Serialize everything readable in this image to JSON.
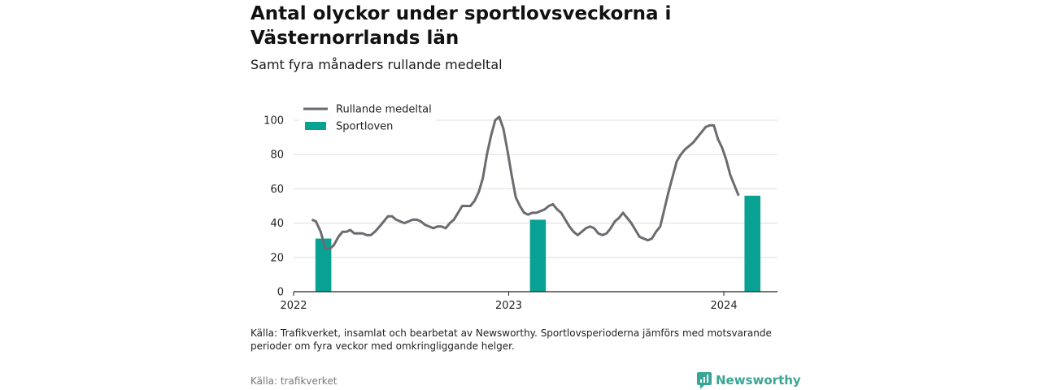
{
  "header": {
    "title": "Antal olyckor under sportlovsveckorna i Västernorrlands län",
    "subtitle": "Samt fyra månaders rullande medeltal"
  },
  "footer": {
    "note": "Källa: Trafikverket, insamlat och bearbetat av Newsworthy. Sportlovsperioderna jämförs med motsvarande perioder om fyra veckor med omkringliggande helger.",
    "source": "Källa: trafikverket",
    "brand": "Newsworthy"
  },
  "colors": {
    "line": "#6b6b70",
    "bar": "#0aa195",
    "grid": "#dddddd",
    "brand": "#3aa596"
  },
  "chart_data": {
    "type": "bar+line",
    "xlim": [
      "2022-01-01",
      "2024-04-01"
    ],
    "ylim": [
      0,
      100
    ],
    "yticks": [
      0,
      20,
      40,
      60,
      80,
      100
    ],
    "xticks": [
      {
        "date": "2022-01-01",
        "label": "2022"
      },
      {
        "date": "2023-01-01",
        "label": "2023"
      },
      {
        "date": "2024-01-01",
        "label": "2024"
      }
    ],
    "legend": {
      "placement": "top-left",
      "items": [
        {
          "label": "Rullande medeltal",
          "kind": "line"
        },
        {
          "label": "Sportloven",
          "kind": "bar"
        }
      ]
    },
    "bars": {
      "name": "Sportloven",
      "points": [
        {
          "start": "2022-02-07",
          "end": "2022-03-06",
          "value": 31
        },
        {
          "start": "2023-02-06",
          "end": "2023-03-05",
          "value": 42
        },
        {
          "start": "2024-02-05",
          "end": "2024-03-03",
          "value": 56
        }
      ]
    },
    "series": [
      {
        "name": "Rullande medeltal",
        "points": [
          [
            "2022-02-01",
            42
          ],
          [
            "2022-02-08",
            41
          ],
          [
            "2022-02-16",
            35
          ],
          [
            "2022-02-24",
            25
          ],
          [
            "2022-03-03",
            25
          ],
          [
            "2022-03-10",
            27
          ],
          [
            "2022-03-18",
            32
          ],
          [
            "2022-03-25",
            35
          ],
          [
            "2022-04-01",
            35
          ],
          [
            "2022-04-07",
            36
          ],
          [
            "2022-04-14",
            34
          ],
          [
            "2022-04-21",
            34
          ],
          [
            "2022-04-28",
            34
          ],
          [
            "2022-05-05",
            33
          ],
          [
            "2022-05-12",
            33
          ],
          [
            "2022-05-19",
            35
          ],
          [
            "2022-05-27",
            38
          ],
          [
            "2022-06-03",
            41
          ],
          [
            "2022-06-10",
            44
          ],
          [
            "2022-06-17",
            44
          ],
          [
            "2022-06-24",
            42
          ],
          [
            "2022-07-01",
            41
          ],
          [
            "2022-07-08",
            40
          ],
          [
            "2022-07-15",
            41
          ],
          [
            "2022-07-22",
            42
          ],
          [
            "2022-07-29",
            42
          ],
          [
            "2022-08-05",
            41
          ],
          [
            "2022-08-12",
            39
          ],
          [
            "2022-08-19",
            38
          ],
          [
            "2022-08-26",
            37
          ],
          [
            "2022-09-02",
            38
          ],
          [
            "2022-09-09",
            38
          ],
          [
            "2022-09-16",
            37
          ],
          [
            "2022-09-23",
            40
          ],
          [
            "2022-09-30",
            42
          ],
          [
            "2022-10-07",
            46
          ],
          [
            "2022-10-14",
            50
          ],
          [
            "2022-10-21",
            50
          ],
          [
            "2022-10-28",
            50
          ],
          [
            "2022-11-04",
            53
          ],
          [
            "2022-11-11",
            58
          ],
          [
            "2022-11-18",
            66
          ],
          [
            "2022-11-25",
            80
          ],
          [
            "2022-12-02",
            91
          ],
          [
            "2022-12-09",
            100
          ],
          [
            "2022-12-16",
            102
          ],
          [
            "2022-12-23",
            95
          ],
          [
            "2022-12-30",
            82
          ],
          [
            "2023-01-06",
            68
          ],
          [
            "2023-01-13",
            55
          ],
          [
            "2023-01-20",
            50
          ],
          [
            "2023-01-27",
            46
          ],
          [
            "2023-02-03",
            45
          ],
          [
            "2023-02-10",
            46
          ],
          [
            "2023-02-17",
            46
          ],
          [
            "2023-02-24",
            47
          ],
          [
            "2023-03-03",
            48
          ],
          [
            "2023-03-10",
            50
          ],
          [
            "2023-03-17",
            51
          ],
          [
            "2023-03-24",
            48
          ],
          [
            "2023-03-31",
            46
          ],
          [
            "2023-04-07",
            42
          ],
          [
            "2023-04-14",
            38
          ],
          [
            "2023-04-21",
            35
          ],
          [
            "2023-04-28",
            33
          ],
          [
            "2023-05-05",
            35
          ],
          [
            "2023-05-12",
            37
          ],
          [
            "2023-05-19",
            38
          ],
          [
            "2023-05-26",
            37
          ],
          [
            "2023-06-02",
            34
          ],
          [
            "2023-06-09",
            33
          ],
          [
            "2023-06-16",
            34
          ],
          [
            "2023-06-23",
            37
          ],
          [
            "2023-06-30",
            41
          ],
          [
            "2023-07-07",
            43
          ],
          [
            "2023-07-14",
            46
          ],
          [
            "2023-07-21",
            43
          ],
          [
            "2023-07-28",
            40
          ],
          [
            "2023-08-04",
            36
          ],
          [
            "2023-08-11",
            32
          ],
          [
            "2023-08-18",
            31
          ],
          [
            "2023-08-25",
            30
          ],
          [
            "2023-09-01",
            31
          ],
          [
            "2023-09-08",
            35
          ],
          [
            "2023-09-15",
            38
          ],
          [
            "2023-09-22",
            48
          ],
          [
            "2023-09-29",
            58
          ],
          [
            "2023-10-06",
            67
          ],
          [
            "2023-10-13",
            76
          ],
          [
            "2023-10-20",
            80
          ],
          [
            "2023-10-27",
            83
          ],
          [
            "2023-11-03",
            85
          ],
          [
            "2023-11-10",
            87
          ],
          [
            "2023-11-17",
            90
          ],
          [
            "2023-11-24",
            93
          ],
          [
            "2023-12-01",
            96
          ],
          [
            "2023-12-08",
            97
          ],
          [
            "2023-12-15",
            97
          ],
          [
            "2023-12-22",
            89
          ],
          [
            "2023-12-29",
            84
          ],
          [
            "2024-01-05",
            77
          ],
          [
            "2024-01-12",
            68
          ],
          [
            "2024-01-19",
            62
          ],
          [
            "2024-01-26",
            56
          ]
        ]
      }
    ]
  }
}
